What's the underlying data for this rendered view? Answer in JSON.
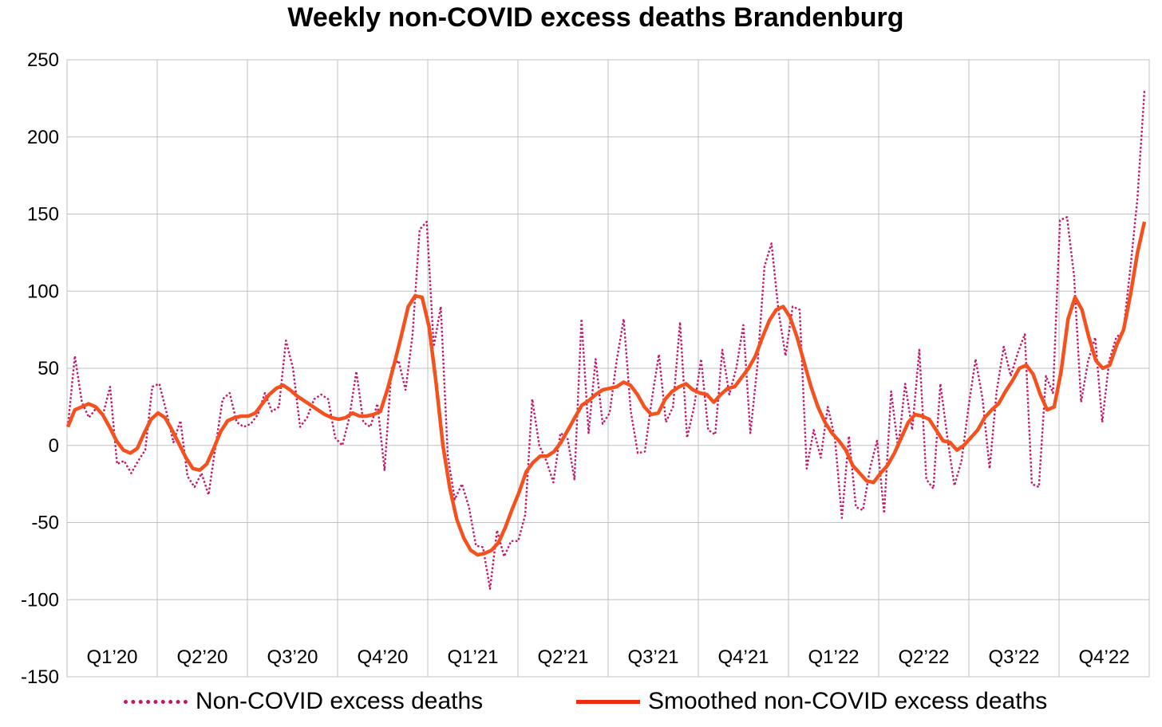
{
  "chart_data": {
    "type": "line",
    "title": "Weekly non-COVID excess deaths Brandenburg",
    "xlabel": "",
    "ylabel": "",
    "ylim": [
      -150,
      250
    ],
    "yticks": [
      250,
      200,
      150,
      100,
      50,
      0,
      -50,
      -100,
      -150
    ],
    "xticks": [
      "Q1’20",
      "Q2’20",
      "Q3’20",
      "Q4’20",
      "Q1’21",
      "Q2’21",
      "Q3’21",
      "Q4’21",
      "Q1’22",
      "Q2’22",
      "Q3’22",
      "Q4’22"
    ],
    "grid": true,
    "legend_position": "bottom",
    "colors": {
      "raw": "#c0176c",
      "smoothed": "#f4511e",
      "grid": "#c0c0c0"
    },
    "series": [
      {
        "name": "Non-COVID excess deaths",
        "style": "dotted",
        "values": [
          12,
          58,
          28,
          18,
          24,
          20,
          38,
          -12,
          -10,
          -18,
          -10,
          -3,
          38,
          40,
          22,
          2,
          16,
          -20,
          -27,
          -18,
          -32,
          0,
          30,
          34,
          15,
          12,
          14,
          20,
          34,
          22,
          25,
          68,
          50,
          12,
          18,
          30,
          33,
          30,
          5,
          0,
          18,
          48,
          15,
          12,
          27,
          -16,
          50,
          55,
          36,
          72,
          140,
          145,
          64,
          90,
          -7,
          -35,
          -25,
          -40,
          -65,
          -66,
          -93,
          -55,
          -72,
          -62,
          -62,
          -45,
          30,
          0,
          -10,
          -24,
          8,
          5,
          -22,
          82,
          8,
          56,
          14,
          21,
          55,
          82,
          22,
          -5,
          -4,
          30,
          59,
          15,
          25,
          80,
          5,
          25,
          56,
          10,
          7,
          62,
          33,
          50,
          78,
          8,
          52,
          116,
          131,
          87,
          58,
          90,
          88,
          -15,
          10,
          -8,
          25,
          5,
          -47,
          6,
          -40,
          -42,
          -15,
          3,
          -44,
          35,
          -2,
          40,
          10,
          62,
          -22,
          -28,
          40,
          5,
          -26,
          -10,
          25,
          56,
          30,
          -15,
          35,
          64,
          45,
          60,
          72,
          -25,
          -27,
          45,
          34,
          146,
          148,
          110,
          28,
          55,
          70,
          15,
          55,
          70,
          74,
          115,
          160,
          230
        ]
      },
      {
        "name": "Smoothed non-COVID excess deaths",
        "style": "solid",
        "values": [
          12,
          23,
          25,
          27,
          25,
          20,
          12,
          3,
          -3,
          -5,
          -2,
          8,
          17,
          21,
          18,
          10,
          1,
          -8,
          -15,
          -16,
          -12,
          -2,
          9,
          16,
          18,
          19,
          19,
          21,
          27,
          33,
          37,
          39,
          36,
          32,
          29,
          26,
          23,
          20,
          18,
          17,
          18,
          21,
          19,
          19,
          20,
          22,
          36,
          53,
          71,
          90,
          97,
          96,
          77,
          41,
          0,
          -28,
          -48,
          -60,
          -68,
          -71,
          -70,
          -68,
          -63,
          -53,
          -41,
          -30,
          -17,
          -11,
          -7,
          -7,
          -4,
          2,
          10,
          18,
          26,
          29,
          33,
          36,
          37,
          38,
          41,
          39,
          33,
          25,
          20,
          21,
          30,
          35,
          38,
          40,
          36,
          34,
          33,
          28,
          33,
          37,
          38,
          44,
          50,
          58,
          70,
          81,
          88,
          90,
          83,
          70,
          54,
          38,
          25,
          15,
          8,
          3,
          -3,
          -13,
          -18,
          -23,
          -24,
          -18,
          -13,
          -5,
          5,
          15,
          20,
          19,
          17,
          10,
          3,
          2,
          -3,
          0,
          5,
          10,
          18,
          23,
          27,
          35,
          42,
          50,
          52,
          46,
          33,
          23,
          25,
          48,
          82,
          96,
          88,
          70,
          55,
          50,
          52,
          65,
          75,
          98,
          125,
          145
        ]
      }
    ]
  }
}
